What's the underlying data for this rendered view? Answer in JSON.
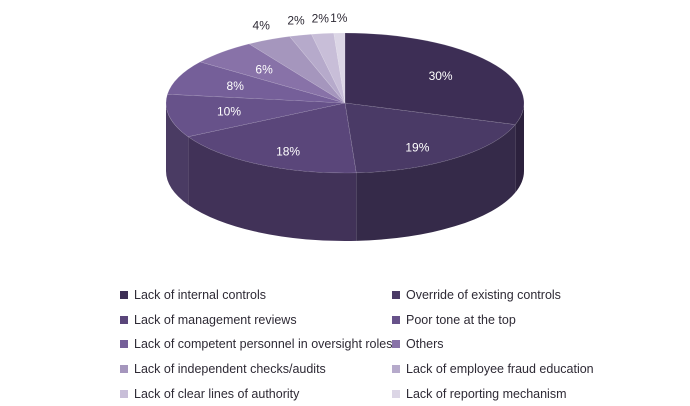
{
  "chart_data": {
    "type": "pie",
    "title": "",
    "categories": [
      "Lack of internal controls",
      "Override of existing controls",
      "Lack of management reviews",
      "Poor tone at the top",
      "Lack of competent personnel in oversight roles",
      "Others",
      "Lack of independent checks/audits",
      "Lack of employee fraud education",
      "Lack of clear lines of authority",
      "Lack of reporting mechanism"
    ],
    "values": [
      30,
      19,
      18,
      10,
      8,
      6,
      4,
      2,
      2,
      1
    ],
    "data_labels": [
      "30%",
      "19%",
      "18%",
      "10%",
      "8%",
      "6%",
      "4%",
      "2%",
      "2%",
      "1%"
    ],
    "colors": [
      "#3d2e55",
      "#4a3a66",
      "#5a467a",
      "#67528a",
      "#755f99",
      "#8872a8",
      "#a596bd",
      "#b6aacb",
      "#c8bed8",
      "#dcd6e6"
    ],
    "legend_position": "bottom",
    "style": "3d"
  }
}
